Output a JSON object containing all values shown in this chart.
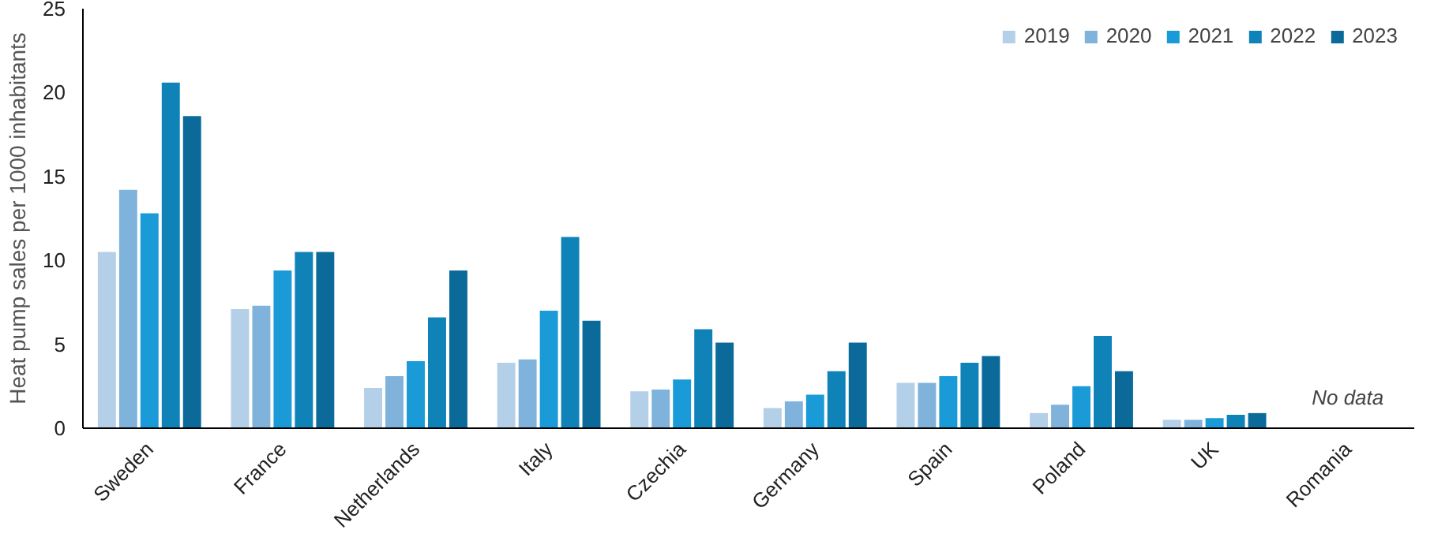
{
  "chart_data": {
    "type": "bar",
    "ylabel": "Heat pump sales per 1000 inhabitants",
    "categories": [
      "Sweden",
      "France",
      "Netherlands",
      "Italy",
      "Czechia",
      "Germany",
      "Spain",
      "Poland",
      "UK",
      "Romania"
    ],
    "series": [
      {
        "name": "2019",
        "color": "#b4cfe8",
        "values": [
          10.5,
          7.1,
          2.4,
          3.9,
          2.2,
          1.2,
          2.7,
          0.9,
          0.5,
          null
        ]
      },
      {
        "name": "2020",
        "color": "#7fb3dc",
        "values": [
          14.2,
          7.3,
          3.1,
          4.1,
          2.3,
          1.6,
          2.7,
          1.4,
          0.5,
          null
        ]
      },
      {
        "name": "2021",
        "color": "#1a9bd7",
        "values": [
          12.8,
          9.4,
          4.0,
          7.0,
          2.9,
          2.0,
          3.1,
          2.5,
          0.6,
          null
        ]
      },
      {
        "name": "2022",
        "color": "#0f83b8",
        "values": [
          20.6,
          10.5,
          6.6,
          11.4,
          5.9,
          3.4,
          3.9,
          5.5,
          0.8,
          null
        ]
      },
      {
        "name": "2023",
        "color": "#0b6a9a",
        "values": [
          18.6,
          10.5,
          9.4,
          6.4,
          5.1,
          5.1,
          4.3,
          3.4,
          0.9,
          null
        ]
      }
    ],
    "ylim": [
      0,
      25
    ],
    "yticks": [
      0,
      5,
      10,
      15,
      20,
      25
    ],
    "grid": false,
    "legend": "top right",
    "annotations": [
      "No data"
    ]
  }
}
